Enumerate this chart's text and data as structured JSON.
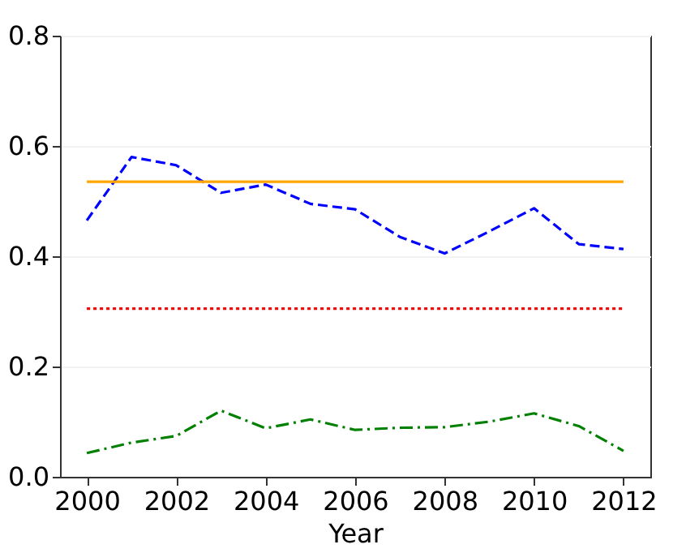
{
  "chart_data": {
    "type": "line",
    "xlabel": "Year",
    "x": [
      2000,
      2001,
      2002,
      2003,
      2004,
      2005,
      2006,
      2007,
      2008,
      2009,
      2010,
      2011,
      2012
    ],
    "series": [
      {
        "color": "#0000ff",
        "line_style": "dashed",
        "values": [
          0.465,
          0.58,
          0.565,
          0.515,
          0.53,
          0.495,
          0.485,
          0.435,
          0.405,
          0.445,
          0.487,
          0.422,
          0.413
        ]
      },
      {
        "color": "#ffa500",
        "line_style": "solid",
        "values": [
          0.535,
          0.535,
          0.535,
          0.535,
          0.535,
          0.535,
          0.535,
          0.535,
          0.535,
          0.535,
          0.535,
          0.535,
          0.535
        ]
      },
      {
        "color": "#ff0000",
        "line_style": "dotted",
        "values": [
          0.305,
          0.305,
          0.305,
          0.305,
          0.305,
          0.305,
          0.305,
          0.305,
          0.305,
          0.305,
          0.305,
          0.305,
          0.305
        ]
      },
      {
        "color": "#008000",
        "line_style": "dashdot",
        "values": [
          0.043,
          0.062,
          0.074,
          0.12,
          0.088,
          0.104,
          0.085,
          0.089,
          0.09,
          0.1,
          0.115,
          0.092,
          0.047
        ]
      }
    ],
    "xlim": [
      1999.4,
      2012.6
    ],
    "xticks": [
      2000,
      2002,
      2004,
      2006,
      2008,
      2010,
      2012
    ],
    "ylim": [
      0,
      0.8
    ],
    "yticks": [
      {
        "value": 0,
        "label": "0.0"
      },
      0.2,
      0.4,
      0.6,
      0.8
    ],
    "grid": "y",
    "marker": "none"
  }
}
